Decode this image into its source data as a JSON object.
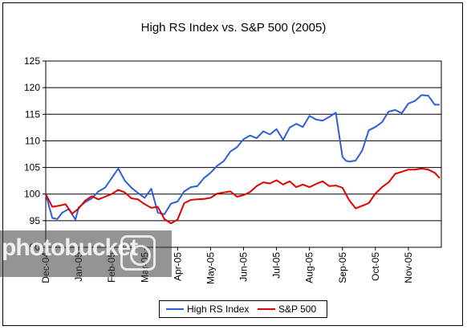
{
  "chart_data": {
    "type": "line",
    "title": "High RS Index vs. S&P 500 (2005)",
    "xlabel": "",
    "ylabel": "",
    "ylim": [
      90,
      125
    ],
    "yticks": [
      90,
      95,
      100,
      105,
      110,
      115,
      120,
      125
    ],
    "categories": [
      "Dec-04",
      "Jan-05",
      "Feb-05",
      "Mar-05",
      "Apr-05",
      "May-05",
      "Jun-05",
      "Jul-05",
      "Aug-05",
      "Sep-05",
      "Oct-05",
      "Nov-05"
    ],
    "grid": true,
    "legend": "bottom",
    "series": [
      {
        "name": "High RS Index",
        "color": "#2e5fd8",
        "x": [
          0,
          0.2,
          0.35,
          0.5,
          0.7,
          0.9,
          1.0,
          1.2,
          1.4,
          1.6,
          1.8,
          2.0,
          2.2,
          2.4,
          2.6,
          2.8,
          3.0,
          3.2,
          3.4,
          3.6,
          3.8,
          4.0,
          4.2,
          4.4,
          4.6,
          4.8,
          5.0,
          5.2,
          5.4,
          5.6,
          5.8,
          6.0,
          6.2,
          6.4,
          6.6,
          6.8,
          7.0,
          7.2,
          7.4,
          7.6,
          7.8,
          8.0,
          8.2,
          8.4,
          8.6,
          8.8,
          9.0,
          9.1,
          9.2,
          9.4,
          9.6,
          9.8,
          10.0,
          10.2,
          10.4,
          10.6,
          10.8,
          11.0,
          11.2,
          11.4,
          11.6,
          11.8,
          11.95
        ],
        "y": [
          100,
          95.5,
          95.3,
          96.5,
          97.2,
          95.2,
          97.5,
          98.5,
          99.2,
          100.5,
          101.2,
          103,
          104.8,
          102.5,
          101.2,
          100.2,
          99.3,
          101,
          96.5,
          96.2,
          98.2,
          98.6,
          100.5,
          101.3,
          101.5,
          103,
          104,
          105.3,
          106.2,
          108,
          108.8,
          110.3,
          111,
          110.5,
          111.8,
          111.2,
          112.2,
          110.2,
          112.5,
          113.2,
          112.6,
          114.7,
          114,
          113.8,
          114.5,
          115.3,
          107,
          106.3,
          106.1,
          106.3,
          108.2,
          112,
          112.6,
          113.5,
          115.5,
          115.8,
          115.2,
          117,
          117.5,
          118.6,
          118.5,
          116.8,
          116.8
        ]
      },
      {
        "name": "S&P 500",
        "color": "#e00000",
        "x": [
          0,
          0.2,
          0.4,
          0.6,
          0.8,
          1.0,
          1.2,
          1.4,
          1.6,
          1.8,
          2.0,
          2.2,
          2.4,
          2.6,
          2.8,
          3.0,
          3.2,
          3.4,
          3.6,
          3.8,
          4.0,
          4.2,
          4.4,
          4.6,
          4.8,
          5.0,
          5.2,
          5.4,
          5.6,
          5.8,
          6.0,
          6.2,
          6.4,
          6.6,
          6.8,
          7.0,
          7.2,
          7.4,
          7.6,
          7.8,
          8.0,
          8.2,
          8.4,
          8.6,
          8.8,
          9.0,
          9.2,
          9.4,
          9.6,
          9.8,
          10.0,
          10.2,
          10.4,
          10.6,
          10.8,
          11.0,
          11.2,
          11.4,
          11.6,
          11.8,
          11.95
        ],
        "y": [
          100,
          97.6,
          97.8,
          98.1,
          96.3,
          97.3,
          98.8,
          99.6,
          99,
          99.5,
          100,
          100.8,
          100.3,
          99.2,
          99,
          98.1,
          97.4,
          97.6,
          95.3,
          94.5,
          95.2,
          98.3,
          98.9,
          99,
          99.1,
          99.3,
          100.1,
          100.3,
          100.5,
          99.5,
          99.8,
          100.4,
          101.5,
          102.2,
          102,
          102.6,
          101.8,
          102.4,
          101.3,
          101.8,
          101.3,
          101.9,
          102.4,
          101.5,
          101.6,
          101.2,
          98.9,
          97.3,
          97.8,
          98.3,
          100.1,
          101.3,
          102.2,
          103.8,
          104.2,
          104.6,
          104.6,
          104.8,
          104.6,
          104,
          103
        ]
      }
    ]
  },
  "watermark": "photobucket"
}
